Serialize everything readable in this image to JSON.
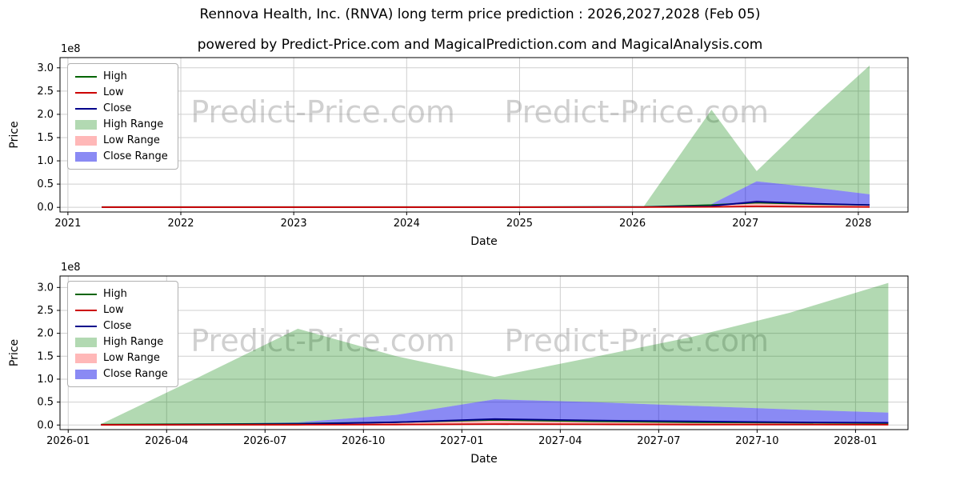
{
  "page": {
    "title": "Rennova Health, Inc. (RNVA) long term price prediction : 2026,2027,2028 (Feb 05)",
    "subtitle": "powered by Predict-Price.com and MagicalPrediction.com and MagicalAnalysis.com",
    "watermark": "Predict-Price.com"
  },
  "colors": {
    "high": "#006400",
    "low": "#cc0000",
    "close": "#00008b",
    "high_range": "rgba(0,128,0,0.30)",
    "low_range": "rgba(255,0,0,0.28)",
    "close_range": "rgba(0,0,230,0.46)",
    "grid": "#cfcfcf",
    "spine": "#000000",
    "tick": "#000000",
    "watermark": "rgba(150,150,150,0.45)"
  },
  "legend": [
    {
      "label": "High",
      "type": "line",
      "color": "high"
    },
    {
      "label": "Low",
      "type": "line",
      "color": "low"
    },
    {
      "label": "Close",
      "type": "line",
      "color": "close"
    },
    {
      "label": "High Range",
      "type": "patch",
      "color": "high_range"
    },
    {
      "label": "Low Range",
      "type": "patch",
      "color": "low_range"
    },
    {
      "label": "Close Range",
      "type": "patch",
      "color": "close_range"
    }
  ],
  "chart_data": [
    {
      "type": "area",
      "name": "yearly-prediction-chart",
      "xlabel": "Date",
      "ylabel": "Price",
      "y_offset_label": "1e8",
      "y_unit": "1e8",
      "xlim": [
        2020.93,
        2028.44
      ],
      "ylim": [
        -0.1,
        3.22
      ],
      "xticks": [
        2021,
        2022,
        2023,
        2024,
        2025,
        2026,
        2027,
        2028
      ],
      "xtick_labels": [
        "2021",
        "2022",
        "2023",
        "2024",
        "2025",
        "2026",
        "2027",
        "2028"
      ],
      "yticks": [
        0.0,
        0.5,
        1.0,
        1.5,
        2.0,
        2.5,
        3.0
      ],
      "ytick_labels": [
        "0.0",
        "0.5",
        "1.0",
        "1.5",
        "2.0",
        "2.5",
        "3.0"
      ],
      "grid": true,
      "legend_position": "upper-left",
      "watermarks": [
        [
          0.31,
          0.42
        ],
        [
          0.68,
          0.42
        ]
      ],
      "x": [
        2021.3,
        2022,
        2023,
        2024,
        2025,
        2026.1,
        2026.7,
        2027.1,
        2027.6,
        2028.1
      ],
      "series": [
        {
          "name": "High Range",
          "kind": "area",
          "color": "high_range",
          "upper": [
            0.01,
            0.01,
            0.01,
            0.01,
            0.01,
            0.02,
            2.1,
            0.78,
            1.95,
            3.05
          ],
          "lower": [
            0.005,
            0.005,
            0.005,
            0.005,
            0.005,
            0.01,
            0.07,
            0.56,
            0.43,
            0.28
          ]
        },
        {
          "name": "Low Range",
          "kind": "area",
          "color": "low_range",
          "upper": [
            0.005,
            0.005,
            0.005,
            0.005,
            0.005,
            0.01,
            0.05,
            0.15,
            0.09,
            0.05
          ],
          "lower": [
            0.002,
            0.002,
            0.002,
            0.002,
            0.002,
            0.003,
            0.01,
            0.02,
            0.012,
            0.008
          ]
        },
        {
          "name": "Close Range",
          "kind": "area",
          "color": "close_range",
          "upper": [
            0.005,
            0.005,
            0.005,
            0.005,
            0.005,
            0.01,
            0.07,
            0.56,
            0.43,
            0.28
          ],
          "lower": [
            0.003,
            0.003,
            0.003,
            0.003,
            0.003,
            0.005,
            0.02,
            0.12,
            0.08,
            0.05
          ]
        },
        {
          "name": "High",
          "kind": "line",
          "color": "high",
          "values": [
            0.008,
            0.008,
            0.008,
            0.008,
            0.008,
            0.01,
            0.05,
            0.1,
            0.07,
            0.05
          ]
        },
        {
          "name": "Close",
          "kind": "line",
          "color": "close",
          "values": [
            0.005,
            0.005,
            0.005,
            0.005,
            0.005,
            0.008,
            0.03,
            0.12,
            0.08,
            0.05
          ]
        },
        {
          "name": "Low",
          "kind": "line",
          "color": "low",
          "values": [
            0.004,
            0.004,
            0.004,
            0.004,
            0.004,
            0.005,
            0.01,
            0.02,
            0.012,
            0.008
          ]
        }
      ]
    },
    {
      "type": "area",
      "name": "monthly-prediction-chart",
      "xlabel": "Date",
      "ylabel": "Price",
      "y_offset_label": "1e8",
      "y_unit": "1e8",
      "x_unit": "months-since-2026-01",
      "xlim": [
        -0.25,
        25.6
      ],
      "ylim": [
        -0.1,
        3.25
      ],
      "xticks": [
        0,
        3,
        6,
        9,
        12,
        15,
        18,
        21,
        24
      ],
      "xtick_labels": [
        "2026-01",
        "2026-04",
        "2026-07",
        "2026-10",
        "2027-01",
        "2027-04",
        "2027-07",
        "2027-10",
        "2028-01"
      ],
      "yticks": [
        0.0,
        0.5,
        1.0,
        1.5,
        2.0,
        2.5,
        3.0
      ],
      "ytick_labels": [
        "0.0",
        "0.5",
        "1.0",
        "1.5",
        "2.0",
        "2.5",
        "3.0"
      ],
      "grid": true,
      "legend_position": "upper-left",
      "watermarks": [
        [
          0.31,
          0.49
        ],
        [
          0.68,
          0.49
        ]
      ],
      "x": [
        1,
        4,
        7,
        10,
        13,
        16,
        19,
        22,
        25
      ],
      "series": [
        {
          "name": "High Range",
          "kind": "area",
          "color": "high_range",
          "upper": [
            0.02,
            1.05,
            2.1,
            1.5,
            1.05,
            1.48,
            1.92,
            2.45,
            3.1
          ],
          "lower": [
            0.01,
            0.02,
            0.06,
            0.22,
            0.56,
            0.5,
            0.42,
            0.34,
            0.27
          ]
        },
        {
          "name": "Low Range",
          "kind": "area",
          "color": "low_range",
          "upper": [
            0.005,
            0.01,
            0.02,
            0.08,
            0.14,
            0.1,
            0.07,
            0.05,
            0.04
          ],
          "lower": [
            0.003,
            0.004,
            0.005,
            0.01,
            0.02,
            0.015,
            0.01,
            0.01,
            0.008
          ]
        },
        {
          "name": "Close Range",
          "kind": "area",
          "color": "close_range",
          "upper": [
            0.01,
            0.02,
            0.06,
            0.22,
            0.56,
            0.5,
            0.42,
            0.34,
            0.27
          ],
          "lower": [
            0.005,
            0.01,
            0.02,
            0.06,
            0.13,
            0.1,
            0.08,
            0.06,
            0.05
          ]
        },
        {
          "name": "High",
          "kind": "line",
          "color": "high",
          "values": [
            0.01,
            0.02,
            0.03,
            0.06,
            0.11,
            0.08,
            0.06,
            0.05,
            0.04
          ]
        },
        {
          "name": "Close",
          "kind": "line",
          "color": "close",
          "values": [
            0.005,
            0.01,
            0.02,
            0.06,
            0.13,
            0.1,
            0.08,
            0.06,
            0.05
          ]
        },
        {
          "name": "Low",
          "kind": "line",
          "color": "low",
          "values": [
            0.004,
            0.005,
            0.006,
            0.01,
            0.02,
            0.015,
            0.01,
            0.01,
            0.008
          ]
        }
      ]
    }
  ]
}
